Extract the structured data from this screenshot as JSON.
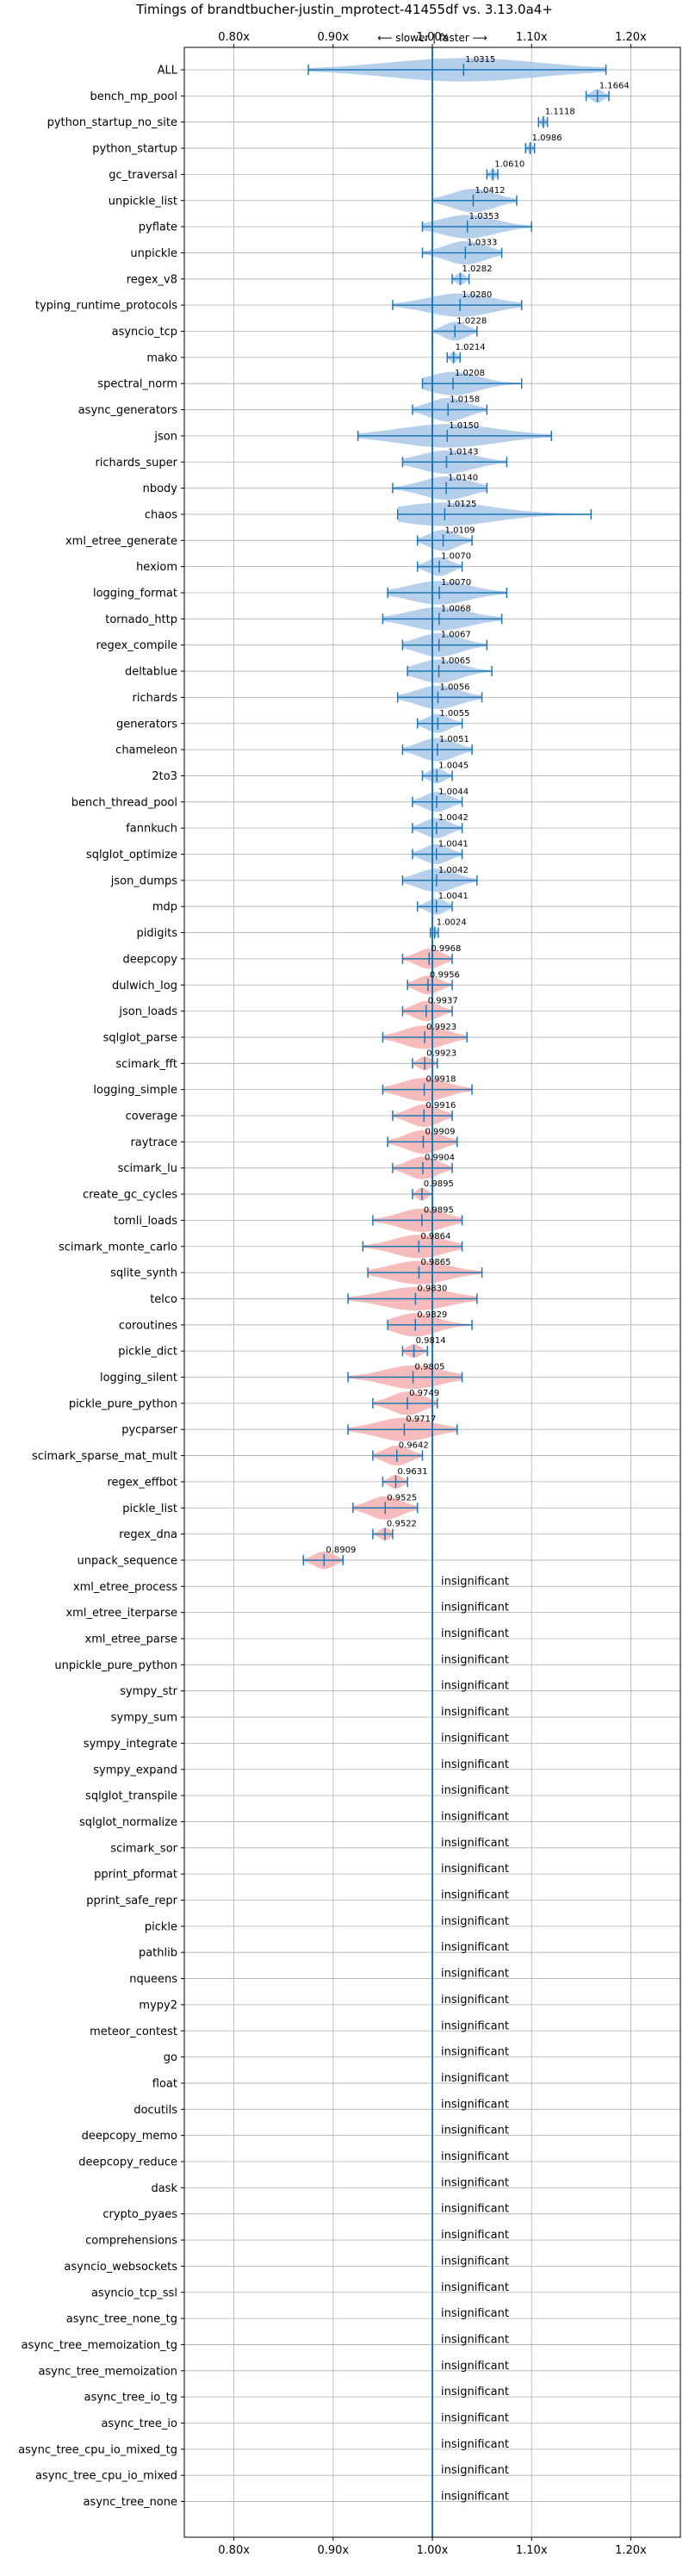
{
  "chart_data": {
    "type": "violin",
    "title": "Timings of brandtbucher-justin_mprotect-41455df vs. 3.13.0a4+",
    "direction_annotation": "⟵ slower | faster ⟶",
    "xlim": [
      0.75,
      1.25
    ],
    "x_ticks": [
      "0.80x",
      "0.90x",
      "1.00x",
      "1.10x",
      "1.20x"
    ],
    "x_tick_values": [
      0.8,
      0.9,
      1.0,
      1.1,
      1.2
    ],
    "grid": true,
    "reference_line": 1.0,
    "colors": {
      "faster": "#9dc0e5",
      "slower": "#f3a6a6",
      "line": "#1f77b4",
      "grid": "#b0b0b0"
    },
    "insignificant_label": "insignificant",
    "benchmarks": [
      {
        "name": "ALL",
        "value": 1.0315,
        "min": 0.875,
        "max": 1.175
      },
      {
        "name": "bench_mp_pool",
        "value": 1.1664,
        "min": 1.155,
        "max": 1.178
      },
      {
        "name": "python_startup_no_site",
        "value": 1.1118,
        "min": 1.107,
        "max": 1.116
      },
      {
        "name": "python_startup",
        "value": 1.0986,
        "min": 1.094,
        "max": 1.103
      },
      {
        "name": "gc_traversal",
        "value": 1.061,
        "min": 1.055,
        "max": 1.066
      },
      {
        "name": "unpickle_list",
        "value": 1.0412,
        "min": 1.0,
        "max": 1.085
      },
      {
        "name": "pyflate",
        "value": 1.0353,
        "min": 0.99,
        "max": 1.1
      },
      {
        "name": "unpickle",
        "value": 1.0333,
        "min": 0.99,
        "max": 1.07
      },
      {
        "name": "regex_v8",
        "value": 1.0282,
        "min": 1.02,
        "max": 1.037
      },
      {
        "name": "typing_runtime_protocols",
        "value": 1.028,
        "min": 0.96,
        "max": 1.09
      },
      {
        "name": "asyncio_tcp",
        "value": 1.0228,
        "min": 1.0,
        "max": 1.045
      },
      {
        "name": "mako",
        "value": 1.0214,
        "min": 1.015,
        "max": 1.028
      },
      {
        "name": "spectral_norm",
        "value": 1.0208,
        "min": 0.99,
        "max": 1.09
      },
      {
        "name": "async_generators",
        "value": 1.0158,
        "min": 0.98,
        "max": 1.055
      },
      {
        "name": "json",
        "value": 1.015,
        "min": 0.925,
        "max": 1.12
      },
      {
        "name": "richards_super",
        "value": 1.0143,
        "min": 0.97,
        "max": 1.075
      },
      {
        "name": "nbody",
        "value": 1.014,
        "min": 0.96,
        "max": 1.055
      },
      {
        "name": "chaos",
        "value": 1.0125,
        "min": 0.965,
        "max": 1.16
      },
      {
        "name": "xml_etree_generate",
        "value": 1.0109,
        "min": 0.985,
        "max": 1.04
      },
      {
        "name": "hexiom",
        "value": 1.007,
        "min": 0.985,
        "max": 1.03
      },
      {
        "name": "logging_format",
        "value": 1.007,
        "min": 0.955,
        "max": 1.075
      },
      {
        "name": "tornado_http",
        "value": 1.0068,
        "min": 0.95,
        "max": 1.07
      },
      {
        "name": "regex_compile",
        "value": 1.0067,
        "min": 0.97,
        "max": 1.055
      },
      {
        "name": "deltablue",
        "value": 1.0065,
        "min": 0.975,
        "max": 1.06
      },
      {
        "name": "richards",
        "value": 1.0056,
        "min": 0.965,
        "max": 1.05
      },
      {
        "name": "generators",
        "value": 1.0055,
        "min": 0.985,
        "max": 1.03
      },
      {
        "name": "chameleon",
        "value": 1.0051,
        "min": 0.97,
        "max": 1.04
      },
      {
        "name": "2to3",
        "value": 1.0045,
        "min": 0.99,
        "max": 1.02
      },
      {
        "name": "bench_thread_pool",
        "value": 1.0044,
        "min": 0.98,
        "max": 1.03
      },
      {
        "name": "fannkuch",
        "value": 1.0042,
        "min": 0.98,
        "max": 1.03
      },
      {
        "name": "sqlglot_optimize",
        "value": 1.0041,
        "min": 0.98,
        "max": 1.03
      },
      {
        "name": "json_dumps",
        "value": 1.0042,
        "min": 0.97,
        "max": 1.045
      },
      {
        "name": "mdp",
        "value": 1.0041,
        "min": 0.985,
        "max": 1.02
      },
      {
        "name": "pidigits",
        "value": 1.0024,
        "min": 0.998,
        "max": 1.006
      },
      {
        "name": "deepcopy",
        "value": 0.9968,
        "min": 0.97,
        "max": 1.02
      },
      {
        "name": "dulwich_log",
        "value": 0.9956,
        "min": 0.975,
        "max": 1.02
      },
      {
        "name": "json_loads",
        "value": 0.9937,
        "min": 0.97,
        "max": 1.02
      },
      {
        "name": "sqlglot_parse",
        "value": 0.9923,
        "min": 0.95,
        "max": 1.035
      },
      {
        "name": "scimark_fft",
        "value": 0.9923,
        "min": 0.98,
        "max": 1.005
      },
      {
        "name": "logging_simple",
        "value": 0.9918,
        "min": 0.95,
        "max": 1.04
      },
      {
        "name": "coverage",
        "value": 0.9916,
        "min": 0.96,
        "max": 1.02
      },
      {
        "name": "raytrace",
        "value": 0.9909,
        "min": 0.955,
        "max": 1.025
      },
      {
        "name": "scimark_lu",
        "value": 0.9904,
        "min": 0.96,
        "max": 1.02
      },
      {
        "name": "create_gc_cycles",
        "value": 0.9895,
        "min": 0.98,
        "max": 1.0
      },
      {
        "name": "tomli_loads",
        "value": 0.9895,
        "min": 0.94,
        "max": 1.03
      },
      {
        "name": "scimark_monte_carlo",
        "value": 0.9864,
        "min": 0.93,
        "max": 1.03
      },
      {
        "name": "sqlite_synth",
        "value": 0.9865,
        "min": 0.935,
        "max": 1.05
      },
      {
        "name": "telco",
        "value": 0.983,
        "min": 0.915,
        "max": 1.045
      },
      {
        "name": "coroutines",
        "value": 0.9829,
        "min": 0.955,
        "max": 1.04
      },
      {
        "name": "pickle_dict",
        "value": 0.9814,
        "min": 0.97,
        "max": 0.995
      },
      {
        "name": "logging_silent",
        "value": 0.9805,
        "min": 0.915,
        "max": 1.03
      },
      {
        "name": "pickle_pure_python",
        "value": 0.9749,
        "min": 0.94,
        "max": 1.005
      },
      {
        "name": "pycparser",
        "value": 0.9717,
        "min": 0.915,
        "max": 1.025
      },
      {
        "name": "scimark_sparse_mat_mult",
        "value": 0.9642,
        "min": 0.94,
        "max": 0.99
      },
      {
        "name": "regex_effbot",
        "value": 0.9631,
        "min": 0.95,
        "max": 0.975
      },
      {
        "name": "pickle_list",
        "value": 0.9525,
        "min": 0.92,
        "max": 0.985
      },
      {
        "name": "regex_dna",
        "value": 0.9522,
        "min": 0.94,
        "max": 0.96
      },
      {
        "name": "unpack_sequence",
        "value": 0.8909,
        "min": 0.87,
        "max": 0.91
      },
      {
        "name": "xml_etree_process",
        "insignificant": true
      },
      {
        "name": "xml_etree_iterparse",
        "insignificant": true
      },
      {
        "name": "xml_etree_parse",
        "insignificant": true
      },
      {
        "name": "unpickle_pure_python",
        "insignificant": true
      },
      {
        "name": "sympy_str",
        "insignificant": true
      },
      {
        "name": "sympy_sum",
        "insignificant": true
      },
      {
        "name": "sympy_integrate",
        "insignificant": true
      },
      {
        "name": "sympy_expand",
        "insignificant": true
      },
      {
        "name": "sqlglot_transpile",
        "insignificant": true
      },
      {
        "name": "sqlglot_normalize",
        "insignificant": true
      },
      {
        "name": "scimark_sor",
        "insignificant": true
      },
      {
        "name": "pprint_pformat",
        "insignificant": true
      },
      {
        "name": "pprint_safe_repr",
        "insignificant": true
      },
      {
        "name": "pickle",
        "insignificant": true
      },
      {
        "name": "pathlib",
        "insignificant": true
      },
      {
        "name": "nqueens",
        "insignificant": true
      },
      {
        "name": "mypy2",
        "insignificant": true
      },
      {
        "name": "meteor_contest",
        "insignificant": true
      },
      {
        "name": "go",
        "insignificant": true
      },
      {
        "name": "float",
        "insignificant": true
      },
      {
        "name": "docutils",
        "insignificant": true
      },
      {
        "name": "deepcopy_memo",
        "insignificant": true
      },
      {
        "name": "deepcopy_reduce",
        "insignificant": true
      },
      {
        "name": "dask",
        "insignificant": true
      },
      {
        "name": "crypto_pyaes",
        "insignificant": true
      },
      {
        "name": "comprehensions",
        "insignificant": true
      },
      {
        "name": "asyncio_websockets",
        "insignificant": true
      },
      {
        "name": "asyncio_tcp_ssl",
        "insignificant": true
      },
      {
        "name": "async_tree_none_tg",
        "insignificant": true
      },
      {
        "name": "async_tree_memoization_tg",
        "insignificant": true
      },
      {
        "name": "async_tree_memoization",
        "insignificant": true
      },
      {
        "name": "async_tree_io_tg",
        "insignificant": true
      },
      {
        "name": "async_tree_io",
        "insignificant": true
      },
      {
        "name": "async_tree_cpu_io_mixed_tg",
        "insignificant": true
      },
      {
        "name": "async_tree_cpu_io_mixed",
        "insignificant": true
      },
      {
        "name": "async_tree_none",
        "insignificant": true
      }
    ]
  }
}
